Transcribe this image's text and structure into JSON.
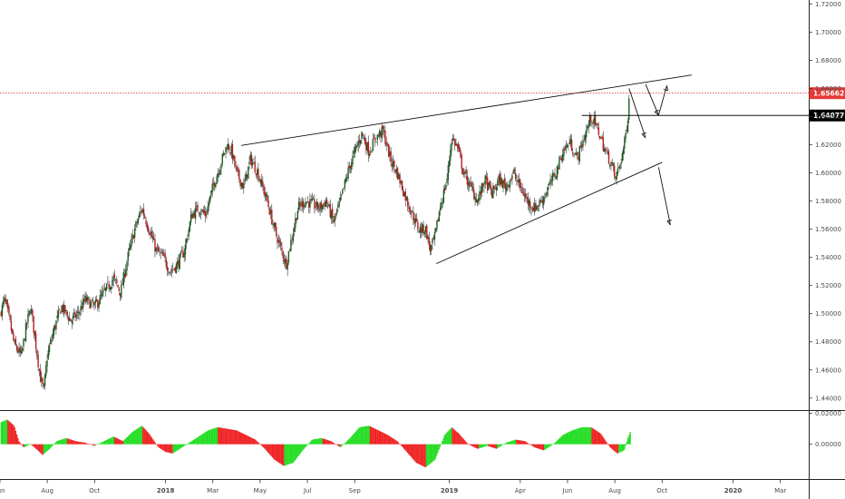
{
  "chart_data": {
    "type": "candlestick",
    "title": "",
    "price_axis": {
      "ticks": [
        "1.72000",
        "1.70000",
        "1.68000",
        "1.66000",
        "1.64000",
        "1.62000",
        "1.60000",
        "1.58000",
        "1.56000",
        "1.54000",
        "1.52000",
        "1.50000",
        "1.48000",
        "1.46000",
        "1.44000"
      ],
      "tick_values": [
        1.72,
        1.7,
        1.68,
        1.66,
        1.64,
        1.62,
        1.6,
        1.58,
        1.56,
        1.54,
        1.52,
        1.5,
        1.48,
        1.46,
        1.44
      ],
      "ylim": [
        1.4315,
        1.7228
      ]
    },
    "time_axis": {
      "labels": [
        "Jun",
        "Aug",
        "Oct",
        "2018",
        "Mar",
        "May",
        "Jul",
        "Sep",
        "2019",
        "Apr",
        "Jun",
        "Aug",
        "Oct",
        "2020",
        "Mar"
      ],
      "bold_labels": [
        "2018",
        "2019",
        "2020"
      ],
      "label_t": [
        0,
        2,
        4,
        7,
        9,
        11,
        13,
        15,
        19,
        22,
        24,
        26,
        28,
        31,
        33
      ],
      "xlim": [
        0.0,
        34.2
      ]
    },
    "price_path": [
      [
        0.0,
        1.5
      ],
      [
        0.2,
        1.51
      ],
      [
        0.4,
        1.495
      ],
      [
        0.6,
        1.478
      ],
      [
        0.9,
        1.47
      ],
      [
        1.1,
        1.49
      ],
      [
        1.3,
        1.505
      ],
      [
        1.5,
        1.48
      ],
      [
        1.7,
        1.455
      ],
      [
        1.85,
        1.445
      ],
      [
        2.0,
        1.47
      ],
      [
        2.3,
        1.49
      ],
      [
        2.6,
        1.505
      ],
      [
        3.0,
        1.495
      ],
      [
        3.3,
        1.5
      ],
      [
        3.6,
        1.51
      ],
      [
        4.0,
        1.505
      ],
      [
        4.4,
        1.515
      ],
      [
        4.8,
        1.525
      ],
      [
        5.1,
        1.515
      ],
      [
        5.4,
        1.54
      ],
      [
        5.7,
        1.56
      ],
      [
        6.0,
        1.575
      ],
      [
        6.3,
        1.56
      ],
      [
        6.6,
        1.545
      ],
      [
        6.9,
        1.54
      ],
      [
        7.2,
        1.53
      ],
      [
        7.5,
        1.535
      ],
      [
        7.8,
        1.545
      ],
      [
        8.1,
        1.57
      ],
      [
        8.4,
        1.575
      ],
      [
        8.7,
        1.57
      ],
      [
        9.0,
        1.59
      ],
      [
        9.3,
        1.605
      ],
      [
        9.6,
        1.62
      ],
      [
        9.8,
        1.615
      ],
      [
        10.0,
        1.6
      ],
      [
        10.3,
        1.59
      ],
      [
        10.6,
        1.61
      ],
      [
        10.9,
        1.6
      ],
      [
        11.3,
        1.58
      ],
      [
        11.6,
        1.56
      ],
      [
        11.9,
        1.545
      ],
      [
        12.1,
        1.535
      ],
      [
        12.35,
        1.555
      ],
      [
        12.6,
        1.575
      ],
      [
        12.9,
        1.58
      ],
      [
        13.2,
        1.578
      ],
      [
        13.5,
        1.575
      ],
      [
        13.8,
        1.58
      ],
      [
        14.1,
        1.565
      ],
      [
        14.4,
        1.58
      ],
      [
        14.7,
        1.6
      ],
      [
        15.0,
        1.615
      ],
      [
        15.3,
        1.628
      ],
      [
        15.6,
        1.615
      ],
      [
        15.9,
        1.625
      ],
      [
        16.2,
        1.63
      ],
      [
        16.5,
        1.61
      ],
      [
        16.8,
        1.6
      ],
      [
        17.1,
        1.585
      ],
      [
        17.4,
        1.572
      ],
      [
        17.7,
        1.56
      ],
      [
        18.0,
        1.56
      ],
      [
        18.2,
        1.545
      ],
      [
        18.4,
        1.555
      ],
      [
        18.6,
        1.575
      ],
      [
        18.9,
        1.595
      ],
      [
        19.1,
        1.625
      ],
      [
        19.35,
        1.618
      ],
      [
        19.6,
        1.6
      ],
      [
        19.9,
        1.59
      ],
      [
        20.2,
        1.58
      ],
      [
        20.5,
        1.595
      ],
      [
        20.8,
        1.585
      ],
      [
        21.1,
        1.595
      ],
      [
        21.4,
        1.59
      ],
      [
        21.7,
        1.6
      ],
      [
        22.0,
        1.59
      ],
      [
        22.3,
        1.58
      ],
      [
        22.6,
        1.575
      ],
      [
        22.9,
        1.58
      ],
      [
        23.2,
        1.59
      ],
      [
        23.5,
        1.6
      ],
      [
        23.8,
        1.615
      ],
      [
        24.1,
        1.622
      ],
      [
        24.4,
        1.61
      ],
      [
        24.7,
        1.625
      ],
      [
        25.0,
        1.64
      ],
      [
        25.3,
        1.63
      ],
      [
        25.6,
        1.615
      ],
      [
        25.9,
        1.605
      ],
      [
        26.0,
        1.595
      ],
      [
        26.2,
        1.605
      ],
      [
        26.4,
        1.62
      ],
      [
        26.55,
        1.64
      ],
      [
        26.6,
        1.655
      ]
    ],
    "oscillator": {
      "ticks": [
        "0.02000",
        "0.00000"
      ],
      "tick_values": [
        0.02,
        0.0
      ],
      "ylim": [
        -0.0225,
        0.0215
      ],
      "path": [
        [
          0.0,
          0.014
        ],
        [
          0.3,
          0.016
        ],
        [
          0.6,
          0.012
        ],
        [
          0.8,
          0.002
        ],
        [
          1.0,
          -0.002
        ],
        [
          1.3,
          0.0
        ],
        [
          1.6,
          -0.004
        ],
        [
          1.8,
          -0.007
        ],
        [
          2.1,
          -0.003
        ],
        [
          2.4,
          0.002
        ],
        [
          2.8,
          0.004
        ],
        [
          3.2,
          0.002
        ],
        [
          3.6,
          0.001
        ],
        [
          4.0,
          -0.001
        ],
        [
          4.4,
          0.002
        ],
        [
          4.8,
          0.005
        ],
        [
          5.2,
          0.002
        ],
        [
          5.6,
          0.008
        ],
        [
          6.0,
          0.012
        ],
        [
          6.3,
          0.007
        ],
        [
          6.7,
          -0.002
        ],
        [
          7.0,
          -0.005
        ],
        [
          7.3,
          -0.006
        ],
        [
          7.6,
          -0.003
        ],
        [
          8.0,
          0.001
        ],
        [
          8.4,
          0.005
        ],
        [
          8.8,
          0.009
        ],
        [
          9.2,
          0.011
        ],
        [
          9.6,
          0.01
        ],
        [
          10.0,
          0.009
        ],
        [
          10.4,
          0.006
        ],
        [
          10.8,
          0.003
        ],
        [
          11.2,
          -0.003
        ],
        [
          11.6,
          -0.01
        ],
        [
          12.0,
          -0.014
        ],
        [
          12.4,
          -0.012
        ],
        [
          12.8,
          -0.004
        ],
        [
          13.2,
          0.003
        ],
        [
          13.6,
          0.004
        ],
        [
          14.0,
          0.002
        ],
        [
          14.4,
          -0.002
        ],
        [
          14.8,
          0.004
        ],
        [
          15.2,
          0.011
        ],
        [
          15.6,
          0.012
        ],
        [
          16.0,
          0.009
        ],
        [
          16.4,
          0.006
        ],
        [
          16.8,
          0.002
        ],
        [
          17.2,
          -0.005
        ],
        [
          17.6,
          -0.012
        ],
        [
          18.0,
          -0.015
        ],
        [
          18.4,
          -0.01
        ],
        [
          18.8,
          0.006
        ],
        [
          19.1,
          0.011
        ],
        [
          19.4,
          0.007
        ],
        [
          19.8,
          0.0
        ],
        [
          20.2,
          -0.003
        ],
        [
          20.6,
          -0.001
        ],
        [
          21.0,
          -0.003
        ],
        [
          21.4,
          0.001
        ],
        [
          21.8,
          0.003
        ],
        [
          22.2,
          0.002
        ],
        [
          22.6,
          -0.002
        ],
        [
          23.0,
          -0.004
        ],
        [
          23.4,
          0.0
        ],
        [
          23.8,
          0.006
        ],
        [
          24.2,
          0.009
        ],
        [
          24.6,
          0.011
        ],
        [
          25.0,
          0.011
        ],
        [
          25.4,
          0.007
        ],
        [
          25.8,
          -0.002
        ],
        [
          26.1,
          -0.006
        ],
        [
          26.4,
          -0.004
        ],
        [
          26.55,
          0.004
        ],
        [
          26.65,
          0.008
        ]
      ]
    },
    "annotations": {
      "upper_trendline": [
        [
          10.2,
          1.6195
        ],
        [
          29.25,
          1.6695
        ]
      ],
      "lower_trendline": [
        [
          18.45,
          1.5355
        ],
        [
          28.0,
          1.6075
        ]
      ],
      "level_line": [
        [
          24.6,
          1.6408
        ],
        [
          34.5,
          1.6408
        ]
      ],
      "arrows": [
        {
          "from": [
            26.6,
            1.66
          ],
          "to": [
            27.3,
            1.625
          ]
        },
        {
          "from": [
            27.3,
            1.663
          ],
          "to": [
            27.85,
            1.641
          ]
        },
        {
          "from": [
            27.85,
            1.641
          ],
          "to": [
            28.2,
            1.662
          ]
        },
        {
          "from": [
            27.85,
            1.604
          ],
          "to": [
            28.35,
            1.563
          ]
        }
      ]
    },
    "price_labels": [
      {
        "text": "1.65662",
        "value": 1.65662,
        "color": "#e53935",
        "line": "dotted"
      },
      {
        "text": "1.64077",
        "value": 1.64077,
        "color": "#000000",
        "line": "solid"
      }
    ]
  }
}
